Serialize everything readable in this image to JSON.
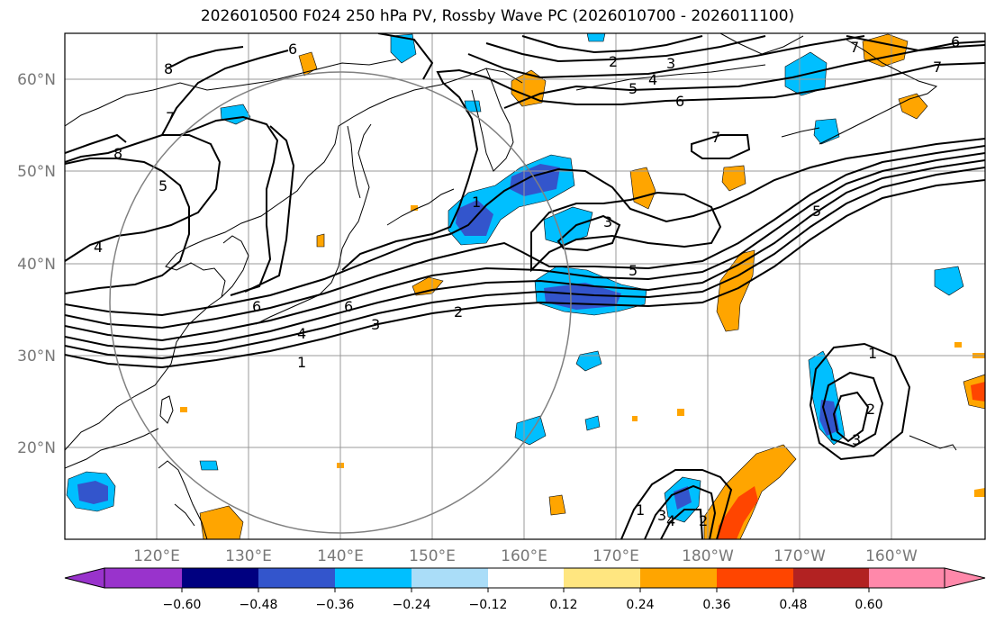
{
  "title": "2026010500 F024 250 hPa PV, Rossby Wave PC (2026010700 - 2026011100)",
  "map": {
    "lon_range_east": [
      110,
      210
    ],
    "lat_range": [
      10,
      65
    ],
    "lon_ticks": [
      "120°E",
      "130°E",
      "140°E",
      "150°E",
      "160°E",
      "170°E",
      "180°W",
      "170°W",
      "160°W"
    ],
    "lat_ticks": [
      "20°N",
      "30°N",
      "40°N",
      "50°N",
      "60°N"
    ],
    "grid": true,
    "frame_color": "#000000",
    "grid_color": "#999999",
    "circle_color": "#808080"
  },
  "colorbar": {
    "extend": "both",
    "ticks": [
      "−0.60",
      "−0.48",
      "−0.36",
      "−0.24",
      "−0.12",
      "0.12",
      "0.24",
      "0.36",
      "0.48",
      "0.60"
    ],
    "colors": [
      "#9933cc",
      "#000080",
      "#3355cc",
      "#00bfff",
      "#aaddf8",
      "#ffffff",
      "#ffe680",
      "#ffa500",
      "#ff4500",
      "#b22222",
      "#ff88aa"
    ]
  },
  "contour_labels": [
    "1",
    "2",
    "3",
    "4",
    "5",
    "6",
    "7",
    "8"
  ]
}
